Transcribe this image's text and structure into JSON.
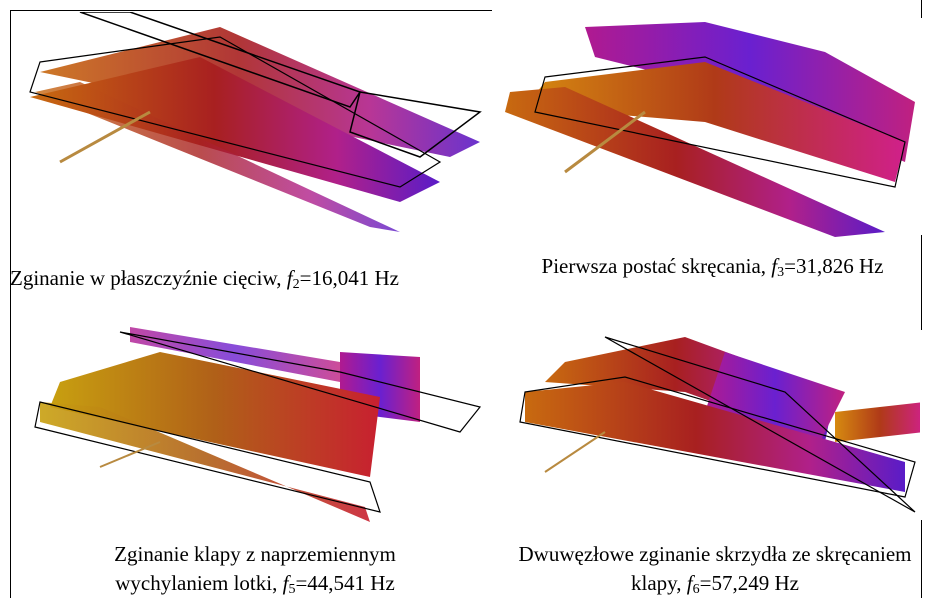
{
  "figures": [
    {
      "caption": {
        "text": "Zginanie w płaszczyźnie cięciw, ",
        "symbol": "f",
        "subscript": "2",
        "value": "=16,041 Hz"
      }
    },
    {
      "caption": {
        "text": "Pierwsza postać skręcania, ",
        "symbol": "f",
        "subscript": "3",
        "value": "=31,826 Hz"
      }
    },
    {
      "caption": {
        "text": "Zginanie klapy z naprzemiennym wychylaniem lotki, ",
        "symbol": "f",
        "subscript": "5",
        "value": "=44,541 Hz"
      }
    },
    {
      "caption": {
        "text": "Dwuwęzłowe zginanie skrzydła ze skręcaniem klapy, ",
        "symbol": "f",
        "subscript": "6",
        "value": "=57,249 Hz"
      }
    }
  ]
}
